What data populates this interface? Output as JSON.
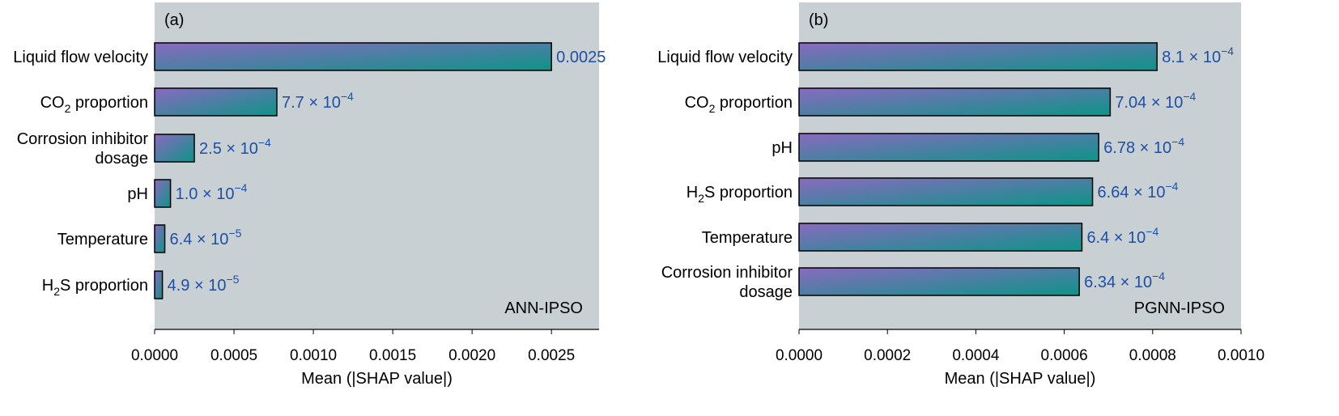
{
  "colors": {
    "plot_background": "#c8d0d3",
    "bar_gradient_start": "#8a6abf",
    "bar_gradient_end": "#0c9488",
    "value_label": "#1e4fa8"
  },
  "chart_data": [
    {
      "type": "bar",
      "orientation": "horizontal",
      "panel": "(a)",
      "model": "ANN-IPSO",
      "xlabel": "Mean (|SHAP value|)",
      "xlim": [
        0,
        0.0028
      ],
      "xticks": [
        0.0,
        0.0005,
        0.001,
        0.0015,
        0.002,
        0.0025
      ],
      "xtick_labels": [
        "0.0000",
        "0.0005",
        "0.0010",
        "0.0015",
        "0.0020",
        "0.0025"
      ],
      "grid": false,
      "categories": [
        [
          "Liquid flow velocity"
        ],
        [
          "CO",
          "2",
          " proportion"
        ],
        [
          "Corrosion inhibitor",
          "dosage"
        ],
        [
          "pH"
        ],
        [
          "Temperature"
        ],
        [
          "H",
          "2",
          "S proportion"
        ]
      ],
      "category_formats": [
        "plain",
        "subscript",
        "lines",
        "plain",
        "plain",
        "subscript"
      ],
      "values": [
        0.0025,
        0.00077,
        0.00025,
        0.0001,
        6.4e-05,
        4.9e-05
      ],
      "value_labels": [
        {
          "mant": "0.0025",
          "exp": ""
        },
        {
          "mant": "7.7 × 10",
          "exp": "−4"
        },
        {
          "mant": "2.5 × 10",
          "exp": "−4"
        },
        {
          "mant": "1.0 × 10",
          "exp": "−4"
        },
        {
          "mant": "6.4 × 10",
          "exp": "−5"
        },
        {
          "mant": "4.9 × 10",
          "exp": "−5"
        }
      ]
    },
    {
      "type": "bar",
      "orientation": "horizontal",
      "panel": "(b)",
      "model": "PGNN-IPSO",
      "xlabel": "Mean (|SHAP value|)",
      "xlim": [
        0,
        0.001
      ],
      "xticks": [
        0.0,
        0.0002,
        0.0004,
        0.0006,
        0.0008,
        0.001
      ],
      "xtick_labels": [
        "0.0000",
        "0.0002",
        "0.0004",
        "0.0006",
        "0.0008",
        "0.0010"
      ],
      "grid": false,
      "categories": [
        [
          "Liquid flow velocity"
        ],
        [
          "CO",
          "2",
          " proportion"
        ],
        [
          "pH"
        ],
        [
          "H",
          "2",
          "S proportion"
        ],
        [
          "Temperature"
        ],
        [
          "Corrosion inhibitor",
          "dosage"
        ]
      ],
      "category_formats": [
        "plain",
        "subscript",
        "plain",
        "subscript",
        "plain",
        "lines"
      ],
      "values": [
        0.00081,
        0.000704,
        0.000678,
        0.000664,
        0.00064,
        0.000634
      ],
      "value_labels": [
        {
          "mant": "8.1 × 10",
          "exp": "−4"
        },
        {
          "mant": "7.04 × 10",
          "exp": "−4"
        },
        {
          "mant": "6.78 × 10",
          "exp": "−4"
        },
        {
          "mant": "6.64 × 10",
          "exp": "−4"
        },
        {
          "mant": "6.4 × 10",
          "exp": "−4"
        },
        {
          "mant": "6.34 × 10",
          "exp": "−4"
        }
      ]
    }
  ]
}
